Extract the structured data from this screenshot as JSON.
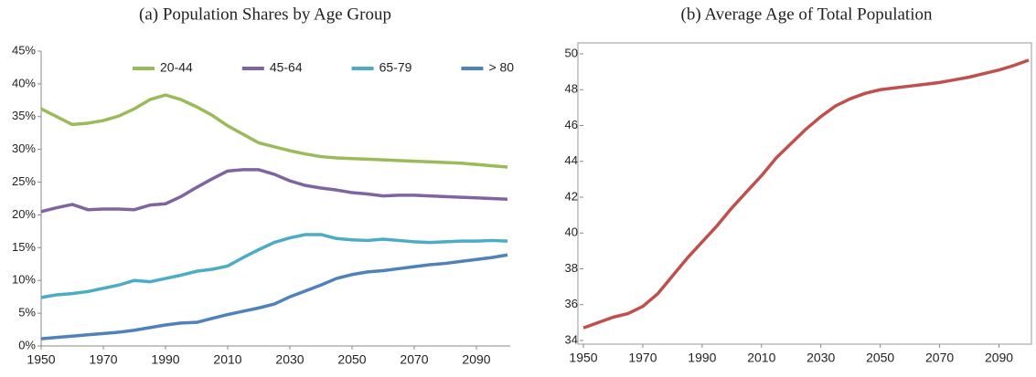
{
  "chart_data": [
    {
      "type": "line",
      "title": "(a) Population Shares by Age Group",
      "x": [
        1950,
        1955,
        1960,
        1965,
        1970,
        1975,
        1980,
        1985,
        1990,
        1995,
        2000,
        2005,
        2010,
        2015,
        2020,
        2025,
        2030,
        2035,
        2040,
        2045,
        2050,
        2055,
        2060,
        2065,
        2070,
        2075,
        2080,
        2085,
        2090,
        2095,
        2100
      ],
      "xlim": [
        1950,
        2100
      ],
      "xticks": [
        1950,
        1970,
        1990,
        2010,
        2030,
        2050,
        2070,
        2090
      ],
      "ylim": [
        0,
        45
      ],
      "yticks": [
        {
          "value": 0,
          "label": "0%"
        },
        {
          "value": 5,
          "label": "5%"
        },
        {
          "value": 10,
          "label": "10%"
        },
        {
          "value": 15,
          "label": "15%"
        },
        {
          "value": 20,
          "label": "20%"
        },
        {
          "value": 25,
          "label": "25%"
        },
        {
          "value": 30,
          "label": "30%"
        },
        {
          "value": 35,
          "label": "35%"
        },
        {
          "value": 40,
          "label": "40%"
        },
        {
          "value": 45,
          "label": "45%"
        }
      ],
      "legend": "top",
      "series": [
        {
          "name": "20-44",
          "color": "#9bbb59",
          "values": [
            36.2,
            35,
            33.8,
            34,
            34.4,
            35.1,
            36.2,
            37.6,
            38.3,
            37.6,
            36.5,
            35.2,
            33.6,
            32.3,
            31,
            30.4,
            29.8,
            29.3,
            28.9,
            28.7,
            28.6,
            28.5,
            28.4,
            28.3,
            28.2,
            28.1,
            28,
            27.9,
            27.7,
            27.5,
            27.3
          ]
        },
        {
          "name": "45-64",
          "color": "#8064a2",
          "values": [
            20.5,
            21.1,
            21.6,
            20.8,
            20.9,
            20.9,
            20.8,
            21.5,
            21.7,
            22.8,
            24.2,
            25.5,
            26.7,
            26.9,
            26.9,
            26.2,
            25.2,
            24.5,
            24.1,
            23.8,
            23.4,
            23.2,
            22.9,
            23,
            23,
            22.9,
            22.8,
            22.7,
            22.6,
            22.5,
            22.4
          ]
        },
        {
          "name": "65-79",
          "color": "#4bacc6",
          "values": [
            7.4,
            7.8,
            8,
            8.3,
            8.8,
            9.3,
            10,
            9.8,
            10.3,
            10.8,
            11.4,
            11.7,
            12.2,
            13.5,
            14.7,
            15.8,
            16.5,
            17,
            17,
            16.4,
            16.2,
            16.1,
            16.3,
            16.1,
            15.9,
            15.8,
            15.9,
            16,
            16,
            16.1,
            16
          ]
        },
        {
          "name": "> 80",
          "color": "#4f81bd",
          "values": [
            1.1,
            1.3,
            1.5,
            1.7,
            1.9,
            2.1,
            2.4,
            2.8,
            3.2,
            3.5,
            3.6,
            4.2,
            4.8,
            5.3,
            5.8,
            6.4,
            7.5,
            8.4,
            9.3,
            10.3,
            10.9,
            11.3,
            11.5,
            11.8,
            12.1,
            12.4,
            12.6,
            12.9,
            13.2,
            13.5,
            13.9
          ]
        }
      ]
    },
    {
      "type": "line",
      "title": "(b) Average Age of Total Population",
      "x": [
        1950,
        1955,
        1960,
        1965,
        1970,
        1975,
        1980,
        1985,
        1990,
        1995,
        2000,
        2005,
        2010,
        2015,
        2020,
        2025,
        2030,
        2035,
        2040,
        2045,
        2050,
        2055,
        2060,
        2065,
        2070,
        2075,
        2080,
        2085,
        2090,
        2095,
        2100
      ],
      "xlim": [
        1950,
        2100
      ],
      "xticks": [
        1950,
        1970,
        1990,
        2010,
        2030,
        2050,
        2070,
        2090
      ],
      "ylim": [
        34,
        50
      ],
      "yticks": [
        34,
        36,
        38,
        40,
        42,
        44,
        46,
        48,
        50
      ],
      "series": [
        {
          "color": "#c0504d",
          "values": [
            34.7,
            35,
            35.3,
            35.5,
            35.9,
            36.6,
            37.6,
            38.6,
            39.5,
            40.4,
            41.4,
            42.3,
            43.2,
            44.2,
            45,
            45.8,
            46.5,
            47.1,
            47.5,
            47.8,
            48,
            48.1,
            48.2,
            48.3,
            48.4,
            48.55,
            48.7,
            48.9,
            49.1,
            49.35,
            49.65
          ]
        }
      ]
    }
  ]
}
